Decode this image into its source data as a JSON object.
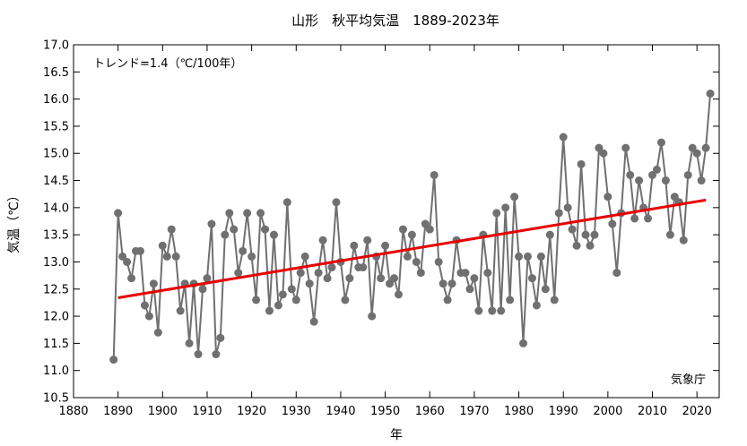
{
  "chart_data": {
    "type": "line",
    "title": "山形　秋平均気温　1889-2023年",
    "xlabel": "年",
    "ylabel": "気温（℃）",
    "trend_label": "トレンド=1.4（℃/100年）",
    "credit": "気象庁",
    "xlim": [
      1880,
      2025
    ],
    "ylim": [
      10.5,
      17.0
    ],
    "x_ticks": [
      1880,
      1890,
      1900,
      1910,
      1920,
      1930,
      1940,
      1950,
      1960,
      1970,
      1980,
      1990,
      2000,
      2010,
      2020
    ],
    "y_ticks": [
      "10.5",
      "11.0",
      "11.5",
      "12.0",
      "12.5",
      "13.0",
      "13.5",
      "14.0",
      "14.5",
      "15.0",
      "15.5",
      "16.0",
      "16.5",
      "17.0"
    ],
    "grid": false,
    "colors": {
      "series": "#707070",
      "trend": "#e60000",
      "axis": "#000000"
    },
    "series": [
      {
        "start_year": 1889,
        "values": [
          11.2,
          13.9,
          13.1,
          13.0,
          12.7,
          13.2,
          13.2,
          12.2,
          12.0,
          12.6,
          11.7,
          13.3,
          13.1,
          13.6,
          13.1,
          12.1,
          12.6,
          11.5,
          12.6,
          11.3,
          12.5,
          12.7,
          13.7,
          11.3,
          11.6,
          13.5,
          13.9,
          13.6,
          12.8,
          13.2,
          13.9,
          13.1,
          12.3,
          13.9,
          13.6,
          12.1,
          13.5,
          12.2,
          12.4,
          14.1,
          12.5,
          12.3,
          12.8,
          13.1,
          12.6,
          11.9,
          12.8,
          13.4,
          12.7,
          12.9,
          14.1,
          13.0,
          12.3,
          12.7,
          13.3,
          12.9,
          12.9,
          13.4,
          12.0,
          13.1,
          12.7,
          13.3,
          12.6,
          12.7,
          12.4,
          13.6,
          13.1,
          13.5,
          13.0,
          12.8,
          13.7,
          13.6,
          14.6,
          13.0,
          12.6,
          12.3,
          12.6,
          13.4,
          12.8,
          12.8,
          12.5,
          12.7,
          12.1,
          13.5,
          12.8,
          12.1,
          13.9,
          12.1,
          14.0,
          12.3,
          14.2,
          13.1,
          11.5,
          13.1,
          12.7,
          12.2,
          13.1,
          12.5,
          13.5,
          12.3,
          13.9,
          15.3,
          14.0,
          13.6,
          13.3,
          14.8,
          13.5,
          13.3,
          13.5,
          15.1,
          15.0,
          14.2,
          13.7,
          12.8,
          13.9,
          15.1,
          14.6,
          13.8,
          14.5,
          14.0,
          13.8,
          14.6,
          14.7,
          15.2,
          14.5,
          13.5,
          14.2,
          14.1,
          13.4,
          14.6,
          15.1,
          15.0,
          14.5,
          15.1,
          16.1
        ]
      }
    ],
    "trend": {
      "x": [
        1890,
        2022
      ],
      "y": [
        12.34,
        14.14
      ]
    }
  }
}
